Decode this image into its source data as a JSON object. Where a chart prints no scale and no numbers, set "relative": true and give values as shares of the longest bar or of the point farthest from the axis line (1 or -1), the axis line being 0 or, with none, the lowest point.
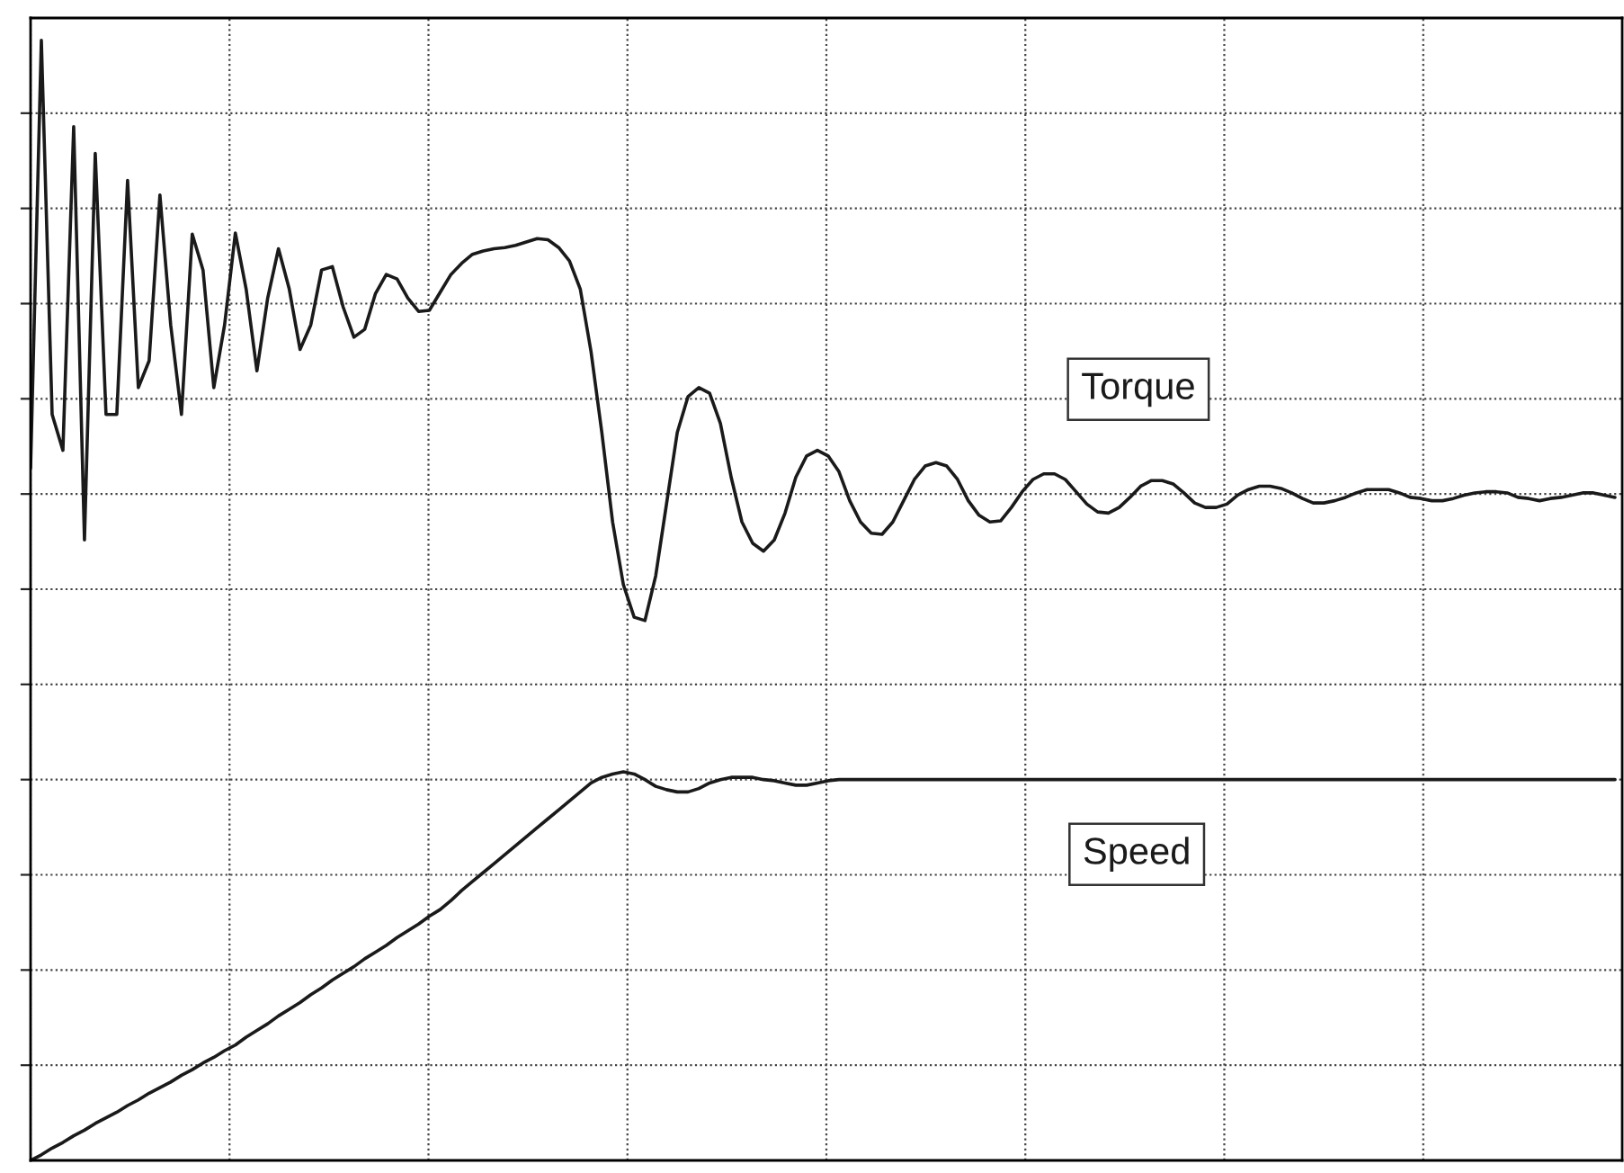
{
  "chart_data": {
    "type": "line",
    "relative": true,
    "grid": true,
    "legend": false,
    "marker": "none",
    "line_style": "solid",
    "categories": [
      null,
      null,
      null,
      null,
      null,
      null,
      null,
      null,
      null,
      null,
      null,
      null,
      null,
      null,
      null,
      null,
      null,
      null,
      null,
      null,
      null,
      null,
      null,
      null,
      null,
      null,
      null,
      null,
      null,
      null,
      null,
      null,
      null,
      null,
      null,
      null,
      null,
      null,
      null,
      null,
      null,
      null,
      null,
      null,
      null,
      null,
      null,
      null,
      null,
      null,
      null,
      null,
      null,
      null,
      null,
      null,
      null,
      null,
      null,
      null,
      null,
      null,
      null,
      null,
      null,
      null,
      null,
      null,
      null,
      null,
      null,
      null,
      null,
      null,
      null,
      null,
      null,
      null,
      null,
      null,
      null,
      null,
      null,
      null,
      null,
      null,
      null,
      null,
      null,
      null,
      null,
      null,
      null,
      null,
      null,
      null,
      null,
      null,
      null,
      null,
      null,
      null,
      null,
      null,
      null,
      null,
      null,
      null,
      null,
      null,
      null,
      null,
      null,
      null,
      null,
      null,
      null,
      null,
      null,
      null,
      null,
      null,
      null,
      null,
      null,
      null,
      null,
      null,
      null,
      null,
      null,
      null,
      null,
      null,
      null,
      null,
      null,
      null,
      null,
      null,
      null,
      null,
      null,
      null,
      null,
      null,
      null,
      null
    ],
    "series": [
      {
        "name": "Torque",
        "color": "#1a1a1a",
        "values": [
          0.618,
          1,
          0.666,
          0.634,
          0.923,
          0.554,
          0.899,
          0.666,
          0.666,
          0.875,
          0.69,
          0.714,
          0.862,
          0.746,
          0.666,
          0.827,
          0.795,
          0.69,
          0.746,
          0.828,
          0.778,
          0.705,
          0.77,
          0.814,
          0.778,
          0.724,
          0.746,
          0.795,
          0.798,
          0.762,
          0.735,
          0.742,
          0.774,
          0.791,
          0.787,
          0.77,
          0.758,
          0.759,
          0.775,
          0.791,
          0.801,
          0.809,
          0.812,
          0.814,
          0.815,
          0.817,
          0.82,
          0.823,
          0.822,
          0.815,
          0.803,
          0.778,
          0.722,
          0.65,
          0.57,
          0.514,
          0.485,
          0.482,
          0.522,
          0.586,
          0.65,
          0.682,
          0.69,
          0.685,
          0.658,
          0.61,
          0.57,
          0.551,
          0.544,
          0.554,
          0.578,
          0.61,
          0.629,
          0.634,
          0.629,
          0.615,
          0.589,
          0.57,
          0.56,
          0.559,
          0.57,
          0.589,
          0.608,
          0.62,
          0.623,
          0.62,
          0.608,
          0.589,
          0.576,
          0.57,
          0.571,
          0.583,
          0.597,
          0.608,
          0.613,
          0.613,
          0.608,
          0.597,
          0.586,
          0.579,
          0.578,
          0.583,
          0.592,
          0.602,
          0.607,
          0.607,
          0.604,
          0.596,
          0.587,
          0.583,
          0.583,
          0.586,
          0.594,
          0.599,
          0.602,
          0.602,
          0.6,
          0.596,
          0.591,
          0.587,
          0.587,
          0.589,
          0.592,
          0.596,
          0.599,
          0.599,
          0.599,
          0.596,
          0.592,
          0.591,
          0.589,
          0.589,
          0.591,
          0.594,
          0.596,
          0.597,
          0.597,
          0.596,
          0.592,
          0.591,
          0.589,
          0.591,
          0.592,
          0.594,
          0.596,
          0.596,
          0.594,
          0.592
        ]
      },
      {
        "name": "Speed",
        "color": "#1a1a1a",
        "values": [
          0,
          0.005,
          0.011,
          0.016,
          0.022,
          0.027,
          0.033,
          0.038,
          0.043,
          0.049,
          0.054,
          0.06,
          0.065,
          0.07,
          0.076,
          0.081,
          0.087,
          0.092,
          0.098,
          0.103,
          0.11,
          0.116,
          0.122,
          0.129,
          0.135,
          0.141,
          0.148,
          0.154,
          0.161,
          0.167,
          0.173,
          0.18,
          0.186,
          0.192,
          0.199,
          0.205,
          0.211,
          0.218,
          0.224,
          0.232,
          0.241,
          0.249,
          0.257,
          0.265,
          0.273,
          0.281,
          0.289,
          0.297,
          0.305,
          0.313,
          0.321,
          0.329,
          0.337,
          0.342,
          0.345,
          0.347,
          0.345,
          0.34,
          0.334,
          0.331,
          0.329,
          0.329,
          0.332,
          0.337,
          0.34,
          0.342,
          0.342,
          0.342,
          0.34,
          0.339,
          0.337,
          0.335,
          0.335,
          0.337,
          0.339,
          0.34,
          0.34,
          0.34,
          0.34,
          0.34,
          0.34,
          0.34,
          0.34,
          0.34,
          0.34,
          0.34,
          0.34,
          0.34,
          0.34,
          0.34,
          0.34,
          0.34,
          0.34,
          0.34,
          0.34,
          0.34,
          0.34,
          0.34,
          0.34,
          0.34,
          0.34,
          0.34,
          0.34,
          0.34,
          0.34,
          0.34,
          0.34,
          0.34,
          0.34,
          0.34,
          0.34,
          0.34,
          0.34,
          0.34,
          0.34,
          0.34,
          0.34,
          0.34,
          0.34,
          0.34,
          0.34,
          0.34,
          0.34,
          0.34,
          0.34,
          0.34,
          0.34,
          0.34,
          0.34,
          0.34,
          0.34,
          0.34,
          0.34,
          0.34,
          0.34,
          0.34,
          0.34,
          0.34,
          0.34,
          0.34,
          0.34,
          0.34,
          0.34,
          0.34,
          0.34,
          0.34,
          0.34,
          0.34
        ]
      }
    ]
  }
}
